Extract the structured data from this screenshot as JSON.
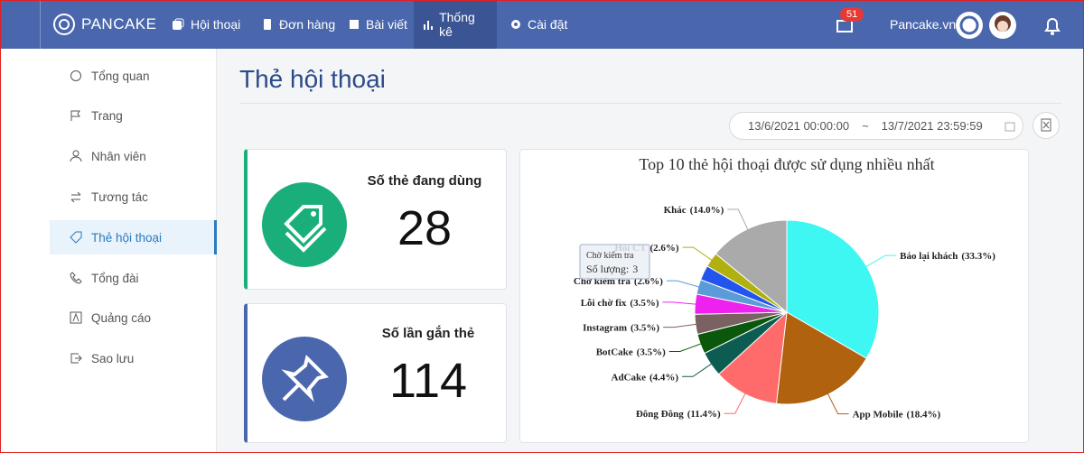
{
  "nav": {
    "brand": "PANCAKE",
    "items": [
      "Hội thoại",
      "Đơn hàng",
      "Bài viết",
      "Thống kê",
      "Cài đặt"
    ],
    "badge": 51,
    "account": "Pancake.vn"
  },
  "sidebar": {
    "items": [
      "Tổng quan",
      "Trang",
      "Nhân viên",
      "Tương tác",
      "Thẻ hội thoại",
      "Tổng đài",
      "Quảng cáo",
      "Sao lưu"
    ]
  },
  "page": {
    "title": "Thẻ hội thoại",
    "date_from": "13/6/2021 00:00:00",
    "date_separator": "~",
    "date_to": "13/7/2021 23:59:59"
  },
  "stats": [
    {
      "label": "Số thẻ đang dùng",
      "value": 28
    },
    {
      "label": "Số lần gắn thẻ",
      "value": 114
    }
  ],
  "chart_data": {
    "type": "pie",
    "title": "Top 10 thẻ hội thoại được sử dụng nhiều nhất",
    "categories": [
      "Báo lại khách",
      "App Mobile",
      "Đông Đông",
      "AdCake",
      "BotCake",
      "Instagram",
      "Lỗi chờ fix",
      "Chờ kiểm tra",
      null,
      "Hỏi CT",
      "Khác"
    ],
    "values": [
      33.3,
      18.4,
      11.4,
      4.4,
      3.5,
      3.5,
      3.5,
      2.6,
      2.6,
      2.6,
      14.0
    ],
    "value_labels": [
      "(33.3%)",
      "(18.4%)",
      "(11.4%)",
      "(4.4%)",
      "(3.5%)",
      "(3.5%)",
      "(3.5%)",
      "(2.6%)",
      null,
      "(2.6%)",
      "(14.0%)"
    ],
    "colors": [
      "#3ef7f2",
      "#b0620f",
      "#ff6b6b",
      "#0d5c52",
      "#0b570b",
      "#7a6262",
      "#ee22ee",
      "#5a9bd8",
      "#2255ee",
      "#b0b010",
      "#aaaaaa"
    ],
    "tooltip": {
      "title": "Chờ kiểm tra",
      "label": "Số lượng:",
      "value": 3
    }
  }
}
